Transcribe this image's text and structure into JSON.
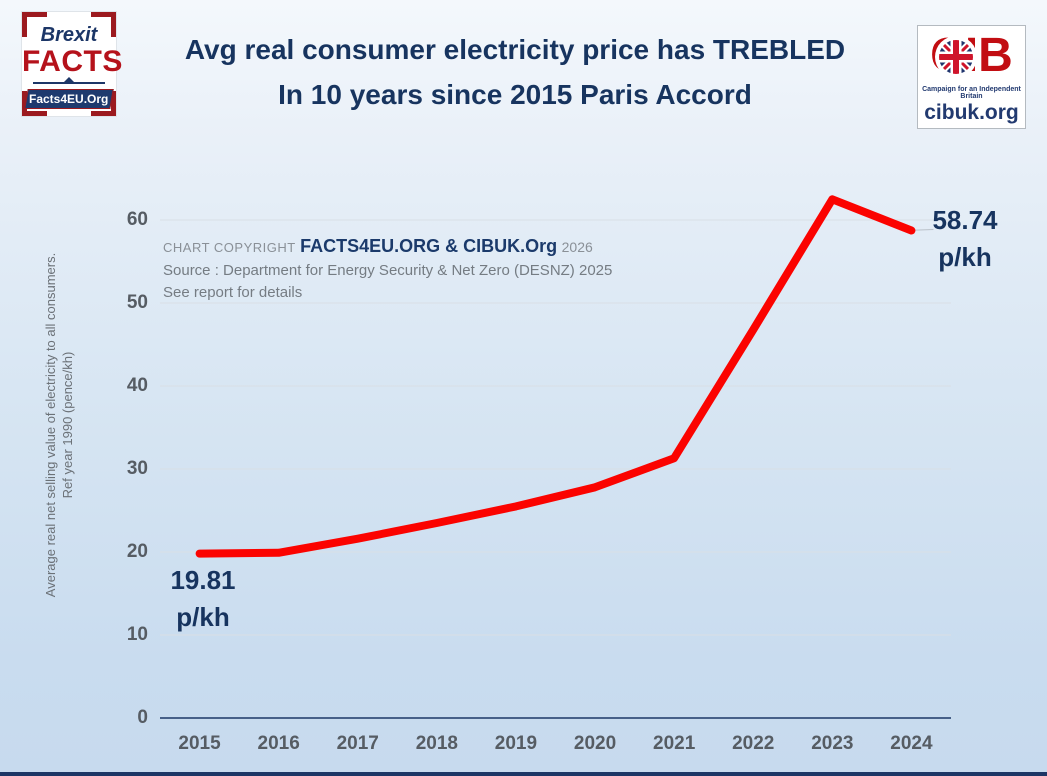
{
  "header": {
    "title_line1": "Avg real consumer electricity price has TREBLED",
    "title_line2": "In 10 years since 2015 Paris Accord",
    "brexit_facts_logo": {
      "line1": "Brexit",
      "line2": "FACTS",
      "banner": "Facts4EU.Org"
    },
    "cib_logo": {
      "acronym": "CIB",
      "tagline": "Campaign for an Independent Britain",
      "url": "cibuk.org"
    }
  },
  "copyright": {
    "prefix": "CHART COPYRIGHT",
    "brand": "FACTS4EU.ORG & CIBUK.Org",
    "year": "2026",
    "source": "Source : Department for Energy Security & Net Zero (DESNZ) 2025",
    "note": "See report for details"
  },
  "chart_data": {
    "type": "line",
    "title": "Avg real consumer electricity price has TREBLED In 10 years since 2015 Paris Accord",
    "categories": [
      "2015",
      "2016",
      "2017",
      "2018",
      "2019",
      "2020",
      "2021",
      "2022",
      "2023",
      "2024"
    ],
    "values": [
      19.81,
      19.9,
      21.6,
      23.5,
      25.5,
      27.8,
      31.3,
      46.8,
      62.5,
      58.74
    ],
    "ylabel": "Average real net selling value of electricity to all consumers. Ref year 1990 (pence/kh)",
    "ylabel_line1": "Average real net selling value of electricity to all consumers.",
    "ylabel_line2": "Ref year 1990 (pence/kh)",
    "xlabel": "",
    "yticks": [
      0,
      10,
      20,
      30,
      40,
      50,
      60
    ],
    "ylim": [
      0,
      67
    ],
    "grid": true,
    "legend": "none",
    "start_label": {
      "value": "19.81",
      "unit": "p/kh"
    },
    "end_label": {
      "value": "58.74",
      "unit": "p/kh"
    }
  },
  "colors": {
    "line_red": "#fb0300",
    "title_navy": "#17345f",
    "axis_navy": "#1c3867",
    "tick_gray": "#565c63",
    "gridline": "#d9dfe5",
    "background_top": "#f4f8fc",
    "background_bottom": "#c7daee",
    "logo_red": "#b5121b",
    "bottom_bar_navy": "#1c3565"
  }
}
